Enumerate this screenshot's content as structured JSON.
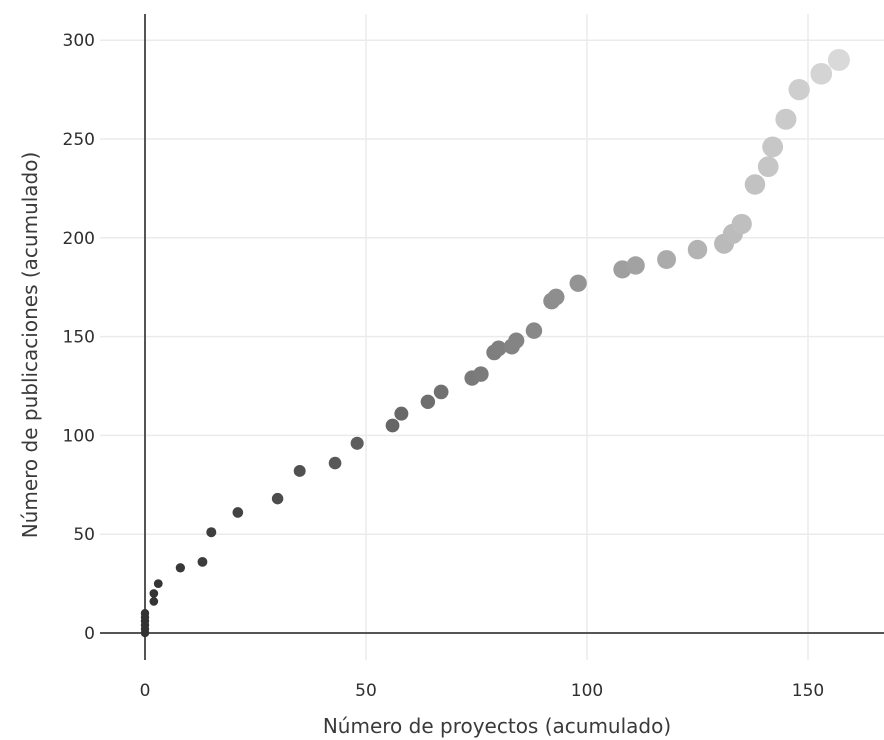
{
  "chart_data": {
    "type": "scatter",
    "title": "",
    "xlabel": "Número de proyectos (acumulado)",
    "ylabel": "Número de publicaciones (acumulado)",
    "xlim": [
      -10,
      167
    ],
    "ylim": [
      -5,
      312
    ],
    "xticks": [
      0,
      50,
      100,
      150
    ],
    "yticks": [
      0,
      50,
      100,
      150,
      200,
      250,
      300
    ],
    "grid": true,
    "marker_color_start": "#333333",
    "marker_color_end": "#d9d9d9",
    "points": [
      {
        "x": 0,
        "y": 0
      },
      {
        "x": 0,
        "y": 2
      },
      {
        "x": 0,
        "y": 4
      },
      {
        "x": 0,
        "y": 6
      },
      {
        "x": 0,
        "y": 8
      },
      {
        "x": 0,
        "y": 10
      },
      {
        "x": 2,
        "y": 16
      },
      {
        "x": 2,
        "y": 20
      },
      {
        "x": 3,
        "y": 25
      },
      {
        "x": 8,
        "y": 33
      },
      {
        "x": 13,
        "y": 36
      },
      {
        "x": 15,
        "y": 51
      },
      {
        "x": 21,
        "y": 61
      },
      {
        "x": 30,
        "y": 68
      },
      {
        "x": 35,
        "y": 82
      },
      {
        "x": 43,
        "y": 86
      },
      {
        "x": 48,
        "y": 96
      },
      {
        "x": 56,
        "y": 105
      },
      {
        "x": 58,
        "y": 111
      },
      {
        "x": 64,
        "y": 117
      },
      {
        "x": 67,
        "y": 122
      },
      {
        "x": 74,
        "y": 129
      },
      {
        "x": 76,
        "y": 131
      },
      {
        "x": 79,
        "y": 142
      },
      {
        "x": 80,
        "y": 144
      },
      {
        "x": 83,
        "y": 145
      },
      {
        "x": 84,
        "y": 148
      },
      {
        "x": 88,
        "y": 153
      },
      {
        "x": 92,
        "y": 168
      },
      {
        "x": 93,
        "y": 170
      },
      {
        "x": 98,
        "y": 177
      },
      {
        "x": 108,
        "y": 184
      },
      {
        "x": 111,
        "y": 186
      },
      {
        "x": 118,
        "y": 189
      },
      {
        "x": 125,
        "y": 194
      },
      {
        "x": 131,
        "y": 197
      },
      {
        "x": 133,
        "y": 202
      },
      {
        "x": 135,
        "y": 207
      },
      {
        "x": 138,
        "y": 227
      },
      {
        "x": 141,
        "y": 236
      },
      {
        "x": 142,
        "y": 246
      },
      {
        "x": 145,
        "y": 260
      },
      {
        "x": 148,
        "y": 275
      },
      {
        "x": 153,
        "y": 283
      },
      {
        "x": 157,
        "y": 290
      }
    ]
  }
}
